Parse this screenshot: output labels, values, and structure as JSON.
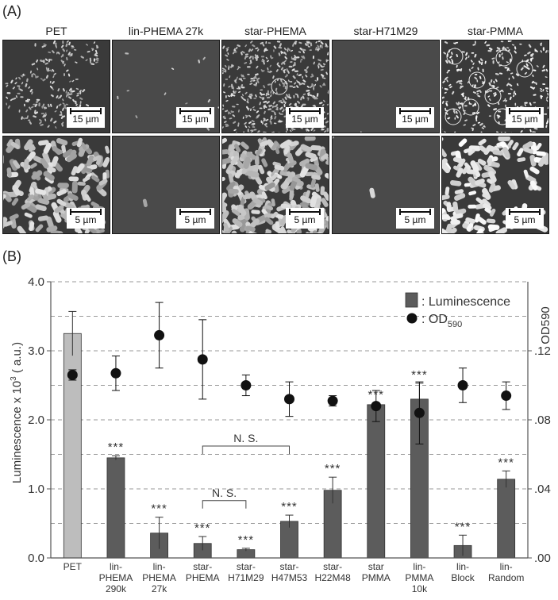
{
  "panel_a": {
    "label": "(A)",
    "columns": [
      {
        "title": "PET",
        "top_scale": "15 µm",
        "bottom_scale": "5 µm",
        "texture": "bacteria-dense-colony"
      },
      {
        "title": "lin-PHEMA 27k",
        "top_scale": "15 µm",
        "bottom_scale": "5 µm",
        "texture": "sparse-rods"
      },
      {
        "title": "star-PHEMA",
        "top_scale": "15 µm",
        "bottom_scale": "5 µm",
        "texture": "dense-network"
      },
      {
        "title": "star-H71M29",
        "top_scale": "15 µm",
        "bottom_scale": "5 µm",
        "texture": "smooth"
      },
      {
        "title": "star-PMMA",
        "top_scale": "15 µm",
        "bottom_scale": "5 µm",
        "texture": "clusters-with-circles"
      }
    ]
  },
  "panel_b": {
    "label": "(B)",
    "ylabel_left": "Luminescence x 10",
    "ylabel_left_sup": "3",
    "ylabel_left_unit": " ( a.u.)",
    "ylabel_right": "OD590",
    "legend": {
      "bar_label": ": Luminescence",
      "dot_label_prefix": ": OD",
      "dot_label_sub": "590"
    },
    "ns_label": "N. S.",
    "sig_label": "***"
  },
  "chart_data": {
    "type": "bar",
    "categories": [
      [
        "PET"
      ],
      [
        "lin-",
        "PHEMA",
        "290k"
      ],
      [
        "lin-",
        "PHEMA",
        "27k"
      ],
      [
        "star-",
        "PHEMA"
      ],
      [
        "star-",
        "H71M29"
      ],
      [
        "star-",
        "H47M53"
      ],
      [
        "star-",
        "H22M48"
      ],
      [
        "star",
        "PMMA"
      ],
      [
        "lin-",
        "PMMA",
        "10k"
      ],
      [
        "lin-",
        "Block"
      ],
      [
        "lin-",
        "Random"
      ]
    ],
    "series": [
      {
        "name": "Luminescence",
        "axis": "left",
        "values": [
          3.25,
          1.45,
          0.36,
          0.21,
          0.12,
          0.53,
          0.98,
          2.22,
          2.3,
          0.18,
          1.14
        ],
        "errors": [
          0.32,
          0.03,
          0.23,
          0.1,
          0.02,
          0.09,
          0.19,
          0.02,
          0.23,
          0.15,
          0.12
        ],
        "significance": [
          "",
          "***",
          "***",
          "***",
          "***",
          "***",
          "***",
          "***",
          "***",
          "***",
          "***"
        ],
        "colors": [
          "#bdbdbd",
          "#5c5c5c",
          "#5c5c5c",
          "#5c5c5c",
          "#5c5c5c",
          "#5c5c5c",
          "#5c5c5c",
          "#5c5c5c",
          "#5c5c5c",
          "#5c5c5c",
          "#5c5c5c"
        ]
      },
      {
        "name": "OD590",
        "axis": "right",
        "values": [
          0.106,
          0.107,
          0.129,
          0.115,
          0.1,
          0.092,
          0.091,
          0.088,
          0.084,
          0.1,
          0.094
        ],
        "errors": [
          0.003,
          0.01,
          0.019,
          0.023,
          0.006,
          0.01,
          0.003,
          0.009,
          0.018,
          0.01,
          0.008
        ],
        "color": "#111111"
      }
    ],
    "ylim_left": [
      0.0,
      4.0
    ],
    "yticks_left": [
      "0.0",
      "1.0",
      "2.0",
      "3.0",
      "4.0"
    ],
    "ylim_right": [
      0.0,
      0.16
    ],
    "yticks_right": [
      ".00",
      ".04",
      ".08",
      ".12"
    ],
    "grid": "dashed horizontal every 0.5",
    "legend_position": "top-right",
    "brackets": [
      {
        "from": 3,
        "to": 5,
        "label": "N. S."
      },
      {
        "from": 3,
        "to": 4,
        "label": "N. S."
      }
    ]
  }
}
